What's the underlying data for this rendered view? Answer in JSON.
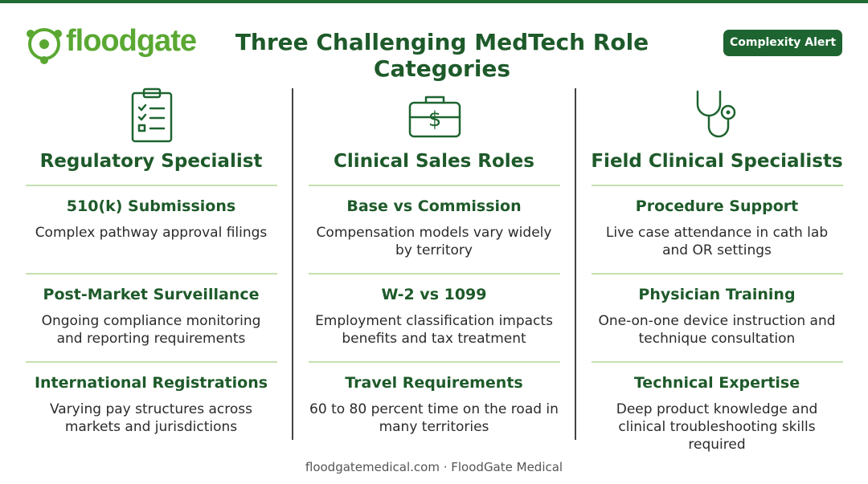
{
  "header": {
    "logo": "floodgate",
    "title": "Three Challenging MedTech Role Categories",
    "badge": "Complexity Alert"
  },
  "columns": [
    {
      "title": "Regulatory Specialist",
      "items": [
        {
          "heading": "510(k) Submissions",
          "text": "Complex pathway approval filings"
        },
        {
          "heading": "Post-Market Surveillance",
          "text": "Ongoing compliance monitoring and reporting requirements"
        },
        {
          "heading": "International Registrations",
          "text": "Varying pay structures across markets and jurisdictions"
        }
      ]
    },
    {
      "title": "Clinical Sales Roles",
      "items": [
        {
          "heading": "Base vs Commission",
          "text": "Compensation models vary widely by territory"
        },
        {
          "heading": "W-2 vs 1099",
          "text": "Employment classification impacts benefits and tax treatment"
        },
        {
          "heading": "Travel Requirements",
          "text": "60 to 80 percent time on the road in many territories"
        }
      ]
    },
    {
      "title": "Field Clinical Specialists",
      "items": [
        {
          "heading": "Procedure Support",
          "text": "Live case attendance in cath lab and OR settings"
        },
        {
          "heading": "Physician Training",
          "text": "One-on-one device instruction and technique consultation"
        },
        {
          "heading": "Technical Expertise",
          "text": "Deep product knowledge and clinical troubleshooting skills required"
        }
      ]
    }
  ],
  "footer": "floodgatemedical.com · FloodGate Medical"
}
